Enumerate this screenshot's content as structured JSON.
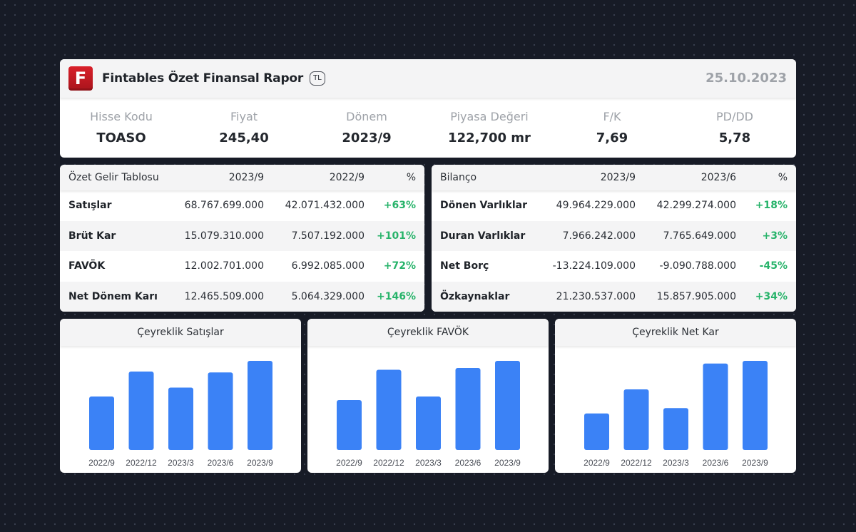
{
  "header": {
    "logo_letter": "F",
    "title": "Fintables Özet Finansal Rapor",
    "currency": "TL",
    "date": "25.10.2023"
  },
  "metrics": [
    {
      "label": "Hisse Kodu",
      "value": "TOASO"
    },
    {
      "label": "Fiyat",
      "value": "245,40"
    },
    {
      "label": "Dönem",
      "value": "2023/9"
    },
    {
      "label": "Piyasa Değeri",
      "value": "122,700 mr"
    },
    {
      "label": "F/K",
      "value": "7,69"
    },
    {
      "label": "PD/DD",
      "value": "5,78"
    }
  ],
  "income": {
    "headers": [
      "Özet Gelir Tablosu",
      "2023/9",
      "2022/9",
      "%"
    ],
    "rows": [
      [
        "Satışlar",
        "68.767.699.000",
        "42.071.432.000",
        "+63%"
      ],
      [
        "Brüt Kar",
        "15.079.310.000",
        "7.507.192.000",
        "+101%"
      ],
      [
        "FAVÖK",
        "12.002.701.000",
        "6.992.085.000",
        "+72%"
      ],
      [
        "Net Dönem Karı",
        "12.465.509.000",
        "5.064.329.000",
        "+146%"
      ]
    ]
  },
  "balance": {
    "headers": [
      "Bilanço",
      "2023/9",
      "2023/6",
      "%"
    ],
    "rows": [
      [
        "Dönen Varlıklar",
        "49.964.229.000",
        "42.299.274.000",
        "+18%"
      ],
      [
        "Duran Varlıklar",
        "7.966.242.000",
        "7.765.649.000",
        "+3%"
      ],
      [
        "Net Borç",
        "-13.224.109.000",
        "-9.090.788.000",
        "-45%"
      ],
      [
        "Özkaynaklar",
        "21.230.537.000",
        "15.857.905.000",
        "+34%"
      ]
    ]
  },
  "colors": {
    "accent_blue": "#3b82f6",
    "positive_green": "#27b36a",
    "logo_red": "#c81a23",
    "background": "#171b26"
  },
  "chart_data": [
    {
      "type": "bar",
      "title": "Çeyreklik Satışlar",
      "categories": [
        "2022/9",
        "2022/12",
        "2023/3",
        "2023/6",
        "2023/9"
      ],
      "values": [
        0.6,
        0.88,
        0.7,
        0.87,
        1.0
      ]
    },
    {
      "type": "bar",
      "title": "Çeyreklik FAVÖK",
      "categories": [
        "2022/9",
        "2022/12",
        "2023/3",
        "2023/6",
        "2023/9"
      ],
      "values": [
        0.56,
        0.9,
        0.6,
        0.92,
        1.0
      ]
    },
    {
      "type": "bar",
      "title": "Çeyreklik Net Kar",
      "categories": [
        "2022/9",
        "2022/12",
        "2023/3",
        "2023/6",
        "2023/9"
      ],
      "values": [
        0.41,
        0.68,
        0.47,
        0.97,
        1.0
      ]
    }
  ]
}
